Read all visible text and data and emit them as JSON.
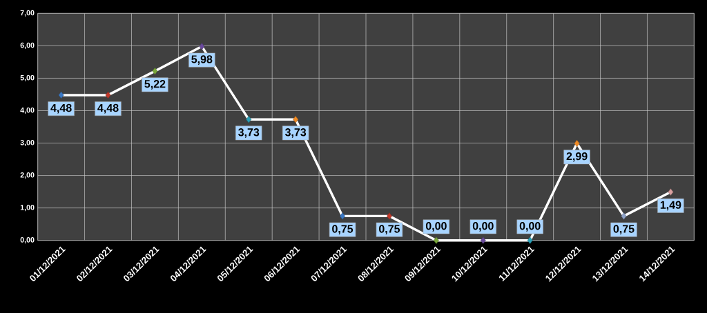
{
  "chart_data": {
    "type": "line",
    "categories": [
      "01/12/2021",
      "02/12/2021",
      "03/12/2021",
      "04/12/2021",
      "05/12/2021",
      "06/12/2021",
      "07/12/2021",
      "08/12/2021",
      "09/12/2021",
      "10/12/2021",
      "11/12/2021",
      "12/12/2021",
      "13/12/2021",
      "14/12/2021"
    ],
    "series": [
      {
        "color": "#ffffff",
        "values": [
          4.48,
          4.48,
          5.22,
          5.98,
          3.73,
          3.73,
          0.75,
          0.75,
          0,
          0,
          0,
          2.99,
          0.75,
          1.49
        ],
        "colors": [
          "#3a78c4",
          "#c0392b",
          "#7aa83a",
          "#6a4a9c",
          "#2aa0b8",
          "#f08a24",
          "#3a78c4",
          "#c0392b",
          "#7aa83a",
          "#6a4a9c",
          "#2aa0b8",
          "#f08a24",
          "#8fa3c8",
          "#d9a0a0"
        ],
        "value_labels": [
          "4,48",
          "4,48",
          "5,22",
          "5,98",
          "3,73",
          "3,73",
          "0,75",
          "0,75",
          "0,00",
          "0,00",
          "0,00",
          "2,99",
          "0,75",
          "1,49"
        ]
      }
    ],
    "ylim": [
      0,
      7
    ],
    "yticks": [
      {
        "value": 0,
        "label": "0,00"
      },
      {
        "value": 1,
        "label": "1,00"
      },
      {
        "value": 2,
        "label": "2,00"
      },
      {
        "value": 3,
        "label": "3,00"
      },
      {
        "value": 4,
        "label": "4,00"
      },
      {
        "value": 5,
        "label": "5,00"
      },
      {
        "value": 6,
        "label": "6,00"
      },
      {
        "value": 7,
        "label": "7,00"
      }
    ],
    "grid": true,
    "marker": "diamond",
    "line_style": "solid"
  }
}
